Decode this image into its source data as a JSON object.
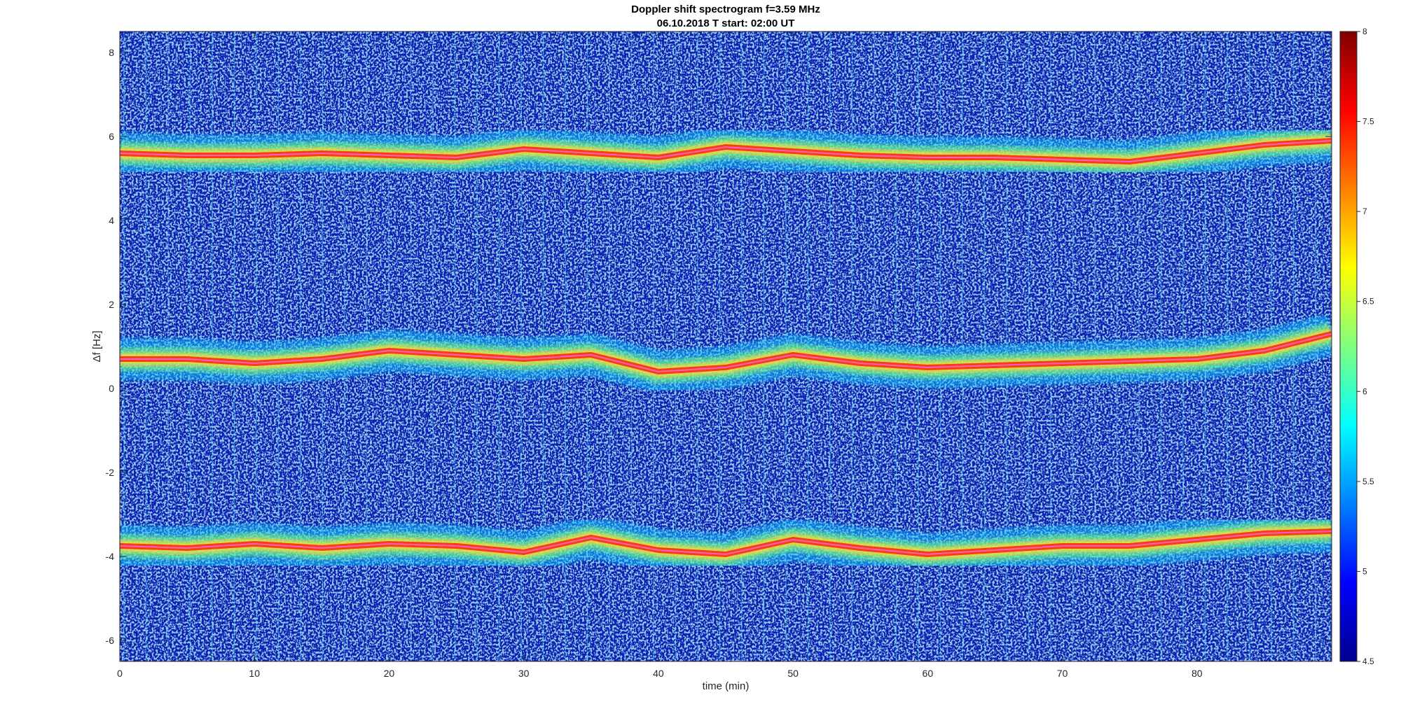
{
  "chart_data": {
    "type": "heatmap",
    "title": "Doppler shift spectrogram f=3.59 MHz",
    "subtitle": "06.10.2018   T start: 02:00 UT",
    "xlabel": "time (min)",
    "ylabel": "Δf [Hz]",
    "xlim": [
      0,
      90
    ],
    "ylim": [
      -6.5,
      8.5
    ],
    "xticks": [
      0,
      10,
      20,
      30,
      40,
      50,
      60,
      70,
      80
    ],
    "yticks": [
      8,
      6,
      4,
      2,
      0,
      -2,
      -4,
      -6
    ],
    "colorbar": {
      "colormap": "jet",
      "clim": [
        4.5,
        8
      ],
      "ticks": [
        8,
        7.5,
        7,
        6.5,
        6,
        5.5,
        5,
        4.5
      ]
    },
    "series": [
      {
        "x": [
          0,
          5,
          10,
          15,
          20,
          25,
          30,
          35,
          40,
          45,
          50,
          55,
          60,
          65,
          70,
          75,
          80,
          85,
          90
        ],
        "y": [
          5.6,
          5.55,
          5.55,
          5.6,
          5.55,
          5.5,
          5.7,
          5.6,
          5.5,
          5.75,
          5.65,
          5.55,
          5.5,
          5.5,
          5.45,
          5.4,
          5.6,
          5.8,
          5.9
        ]
      },
      {
        "x": [
          0,
          5,
          10,
          15,
          20,
          25,
          30,
          35,
          40,
          45,
          50,
          55,
          60,
          65,
          70,
          75,
          80,
          85,
          90
        ],
        "y": [
          0.7,
          0.7,
          0.6,
          0.7,
          0.9,
          0.8,
          0.7,
          0.8,
          0.4,
          0.5,
          0.8,
          0.6,
          0.5,
          0.55,
          0.6,
          0.65,
          0.7,
          0.9,
          1.3
        ]
      },
      {
        "x": [
          0,
          5,
          10,
          15,
          20,
          25,
          30,
          35,
          40,
          45,
          50,
          55,
          60,
          65,
          70,
          75,
          80,
          85,
          90
        ],
        "y": [
          -3.75,
          -3.8,
          -3.7,
          -3.8,
          -3.7,
          -3.75,
          -3.9,
          -3.55,
          -3.85,
          -3.95,
          -3.6,
          -3.8,
          -3.95,
          -3.85,
          -3.75,
          -3.75,
          -3.6,
          -3.45,
          -3.4
        ]
      }
    ]
  }
}
